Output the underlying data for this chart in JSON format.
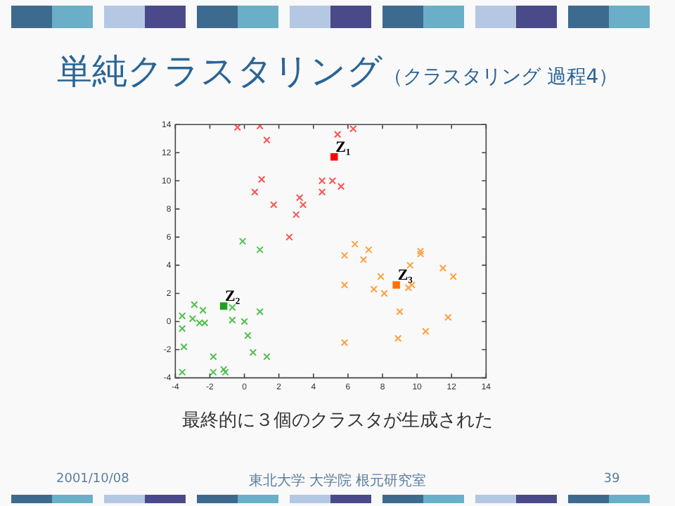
{
  "chart_data": {
    "type": "scatter",
    "title": "単純クラスタリング",
    "subtitle": "（クラスタリング 過程4）",
    "xlim": [
      -4,
      14
    ],
    "xticks": [
      -4,
      -2,
      0,
      2,
      4,
      6,
      8,
      10,
      12,
      14
    ],
    "ylim": [
      -4,
      14
    ],
    "yticks": [
      -4,
      -2,
      0,
      2,
      4,
      6,
      8,
      10,
      12,
      14
    ],
    "grid": false,
    "legend": false,
    "series": [
      {
        "color": "#ff5050",
        "marker": "cross",
        "x": [
          -0.4,
          0.9,
          1.3,
          5.4,
          6.3,
          1.0,
          0.6,
          1.7,
          3.2,
          3.4,
          3.0,
          4.5,
          4.5,
          5.1,
          5.6,
          2.6
        ],
        "values": [
          13.8,
          13.9,
          12.9,
          13.3,
          13.7,
          10.1,
          9.2,
          8.3,
          8.8,
          8.3,
          7.6,
          10.0,
          9.2,
          10.0,
          9.6,
          6.0
        ]
      },
      {
        "color": "#50c050",
        "marker": "cross",
        "x": [
          -0.1,
          0.9,
          -2.9,
          -2.4,
          -3.0,
          -2.6,
          -2.3,
          -3.6,
          -3.6,
          -3.5,
          -3.6,
          -0.7,
          -0.7,
          0.0,
          0.2,
          0.9,
          0.5,
          1.3,
          -1.8,
          -1.8,
          -1.2,
          -1.1
        ],
        "values": [
          5.7,
          5.1,
          1.2,
          0.8,
          0.2,
          -0.1,
          -0.1,
          0.4,
          -0.5,
          -1.8,
          -3.6,
          1.0,
          0.1,
          0.0,
          -1.0,
          0.7,
          -2.2,
          -2.5,
          -2.5,
          -3.6,
          -3.4,
          -3.6
        ]
      },
      {
        "color": "#ffa040",
        "marker": "cross",
        "x": [
          6.4,
          7.2,
          5.8,
          6.9,
          10.2,
          10.2,
          9.6,
          11.5,
          12.1,
          7.9,
          5.8,
          7.5,
          8.1,
          9.7,
          9.5,
          9.0,
          11.8,
          10.5,
          8.9,
          5.8
        ],
        "values": [
          5.5,
          5.1,
          4.7,
          4.4,
          5.0,
          4.8,
          4.0,
          3.8,
          3.2,
          3.2,
          2.6,
          2.3,
          2.0,
          2.6,
          2.4,
          0.7,
          0.3,
          -0.7,
          -1.2,
          -1.5
        ]
      },
      {
        "color": "#ff0000",
        "marker": "square",
        "x": [
          5.2
        ],
        "values": [
          11.7
        ]
      },
      {
        "color": "#20a020",
        "marker": "square",
        "x": [
          -1.2
        ],
        "values": [
          1.1
        ]
      },
      {
        "color": "#ff7000",
        "marker": "square",
        "x": [
          8.8
        ],
        "values": [
          2.6
        ]
      }
    ],
    "annotations": [
      {
        "text": "Z₁",
        "x": 5.2,
        "y": 11.7
      },
      {
        "text": "Z₂",
        "x": -1.2,
        "y": 1.1
      },
      {
        "text": "Z₃",
        "x": 8.8,
        "y": 2.6
      },
      "最終的に３個のクラスタが生成された",
      "2001/10/08",
      "東北大学 大学院 根元研究室",
      "39"
    ]
  }
}
